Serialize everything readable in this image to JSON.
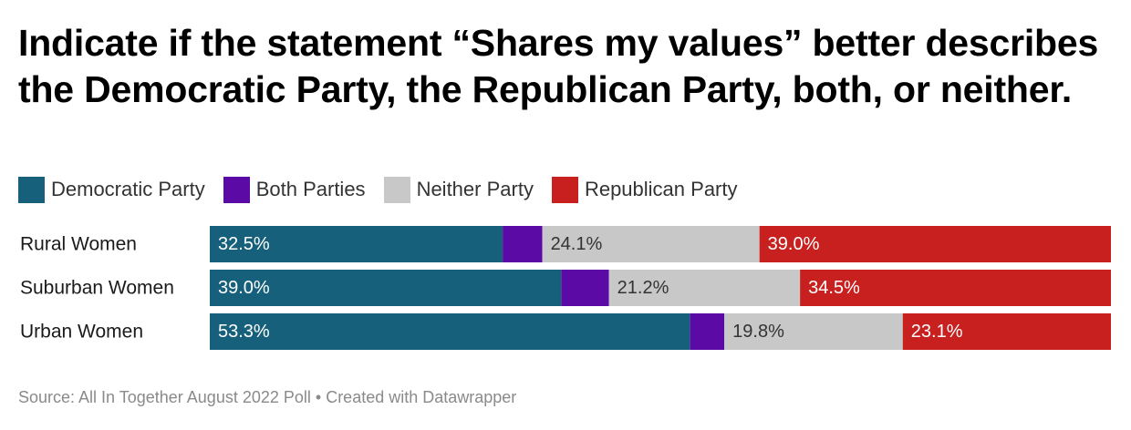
{
  "chart_data": {
    "type": "bar",
    "orientation": "horizontal",
    "stacked": true,
    "normalized": true,
    "title": "Indicate if the statement “Shares my values” better describes the Democratic Party, the Republican Party, both, or neither.",
    "categories": [
      "Rural Women",
      "Suburban Women",
      "Urban Women"
    ],
    "series": [
      {
        "name": "Democratic Party",
        "color": "#17607c",
        "label_color": "#ffffff",
        "values": [
          32.5,
          39.0,
          53.3
        ],
        "labels": [
          "32.5%",
          "39.0%",
          "53.3%"
        ]
      },
      {
        "name": "Both Parties",
        "color": "#5c0aa6",
        "label_color": "#ffffff",
        "values": [
          4.4,
          5.3,
          3.8
        ],
        "labels": [
          "",
          "",
          ""
        ]
      },
      {
        "name": "Neither Party",
        "color": "#c8c8c8",
        "label_color": "#333333",
        "values": [
          24.1,
          21.2,
          19.8
        ],
        "labels": [
          "24.1%",
          "21.2%",
          "19.8%"
        ]
      },
      {
        "name": "Republican Party",
        "color": "#c81f1f",
        "label_color": "#ffffff",
        "values": [
          39.0,
          34.5,
          23.1
        ],
        "labels": [
          "39.0%",
          "34.5%",
          "23.1%"
        ]
      }
    ],
    "legend_position": "top-left",
    "xlim": [
      0,
      100
    ]
  },
  "footer": {
    "source": "Source: All In Together August 2022 Poll • Created with Datawrapper"
  }
}
